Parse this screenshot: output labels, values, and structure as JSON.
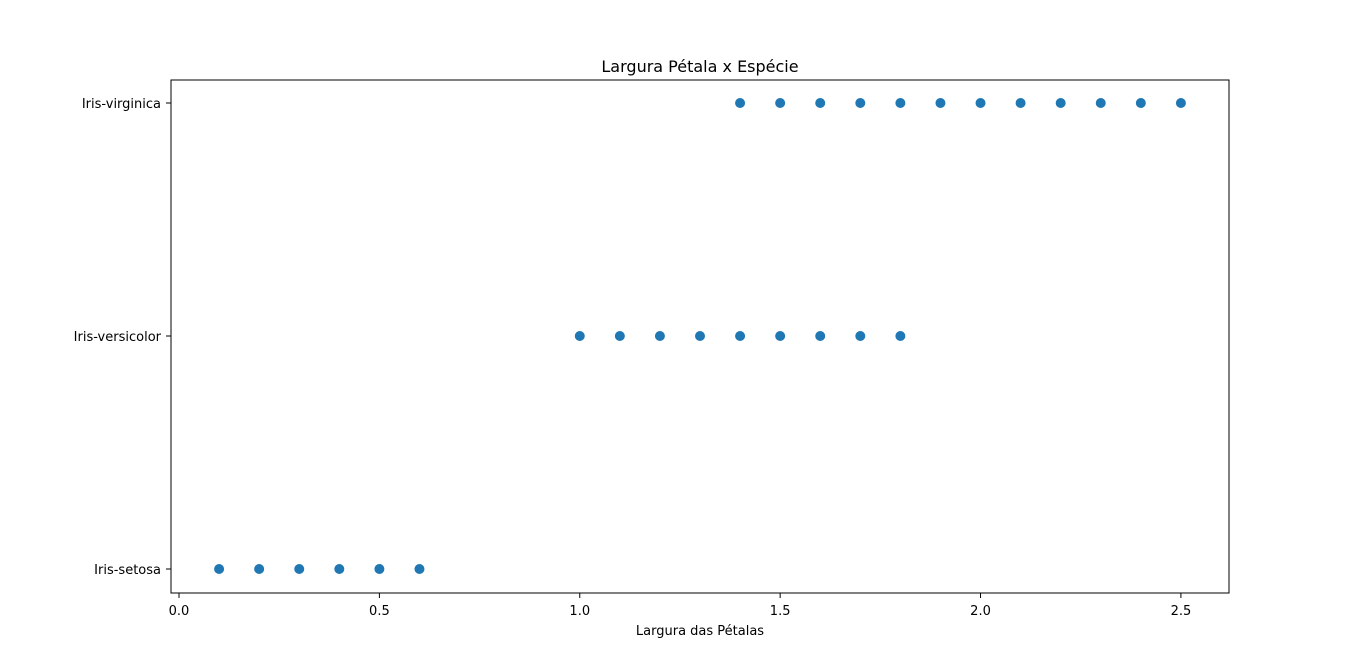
{
  "chart_data": {
    "type": "scatter",
    "title": "Largura Pétala x Espécie",
    "xlabel": "Largura das Pétalas",
    "ylabel": "",
    "xlim": [
      -0.02,
      2.62
    ],
    "categories": [
      "Iris-setosa",
      "Iris-versicolor",
      "Iris-virginica"
    ],
    "x_ticks": [
      0.0,
      0.5,
      1.0,
      1.5,
      2.0,
      2.5
    ],
    "x_tick_labels": [
      "0.0",
      "0.5",
      "1.0",
      "1.5",
      "2.0",
      "2.5"
    ],
    "grid": false,
    "marker_color": "#1f77b4",
    "series": [
      {
        "category": "Iris-setosa",
        "x": [
          0.1,
          0.2,
          0.3,
          0.4,
          0.5,
          0.6
        ]
      },
      {
        "category": "Iris-versicolor",
        "x": [
          1.0,
          1.1,
          1.2,
          1.3,
          1.4,
          1.5,
          1.6,
          1.7,
          1.8
        ]
      },
      {
        "category": "Iris-virginica",
        "x": [
          1.4,
          1.5,
          1.6,
          1.7,
          1.8,
          1.9,
          2.0,
          2.1,
          2.2,
          2.3,
          2.4,
          2.5
        ]
      }
    ]
  }
}
